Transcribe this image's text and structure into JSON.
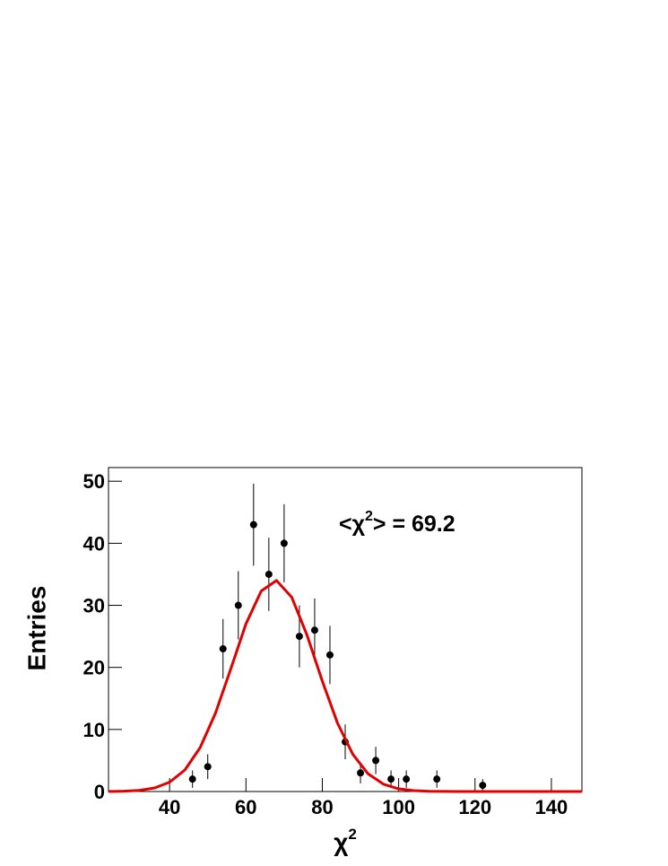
{
  "chart_data": {
    "type": "errorbar",
    "x_label": [
      "χ",
      "2"
    ],
    "y_label": "Entries",
    "annotation": [
      "<χ",
      "2",
      "> = 69.2"
    ],
    "x": [
      46,
      50,
      54,
      58,
      62,
      66,
      70,
      74,
      78,
      82,
      86,
      90,
      94,
      98,
      102,
      110,
      122
    ],
    "values": [
      2,
      4,
      23,
      30,
      43,
      35,
      40,
      25,
      26,
      22,
      8,
      3,
      5,
      2,
      2,
      2,
      1
    ],
    "errors": [
      1.4,
      2,
      4.8,
      5.5,
      6.6,
      5.9,
      6.3,
      5,
      5.1,
      4.7,
      2.8,
      1.7,
      2.2,
      1.4,
      1.4,
      1.4,
      1
    ],
    "color": "#000000",
    "fit": {
      "color": "#e00000",
      "x": [
        24,
        28,
        32,
        36,
        40,
        44,
        48,
        52,
        56,
        60,
        64,
        68,
        72,
        76,
        80,
        84,
        88,
        92,
        96,
        100,
        104,
        108,
        112,
        116,
        120,
        124,
        128,
        132,
        136,
        140,
        144,
        148
      ],
      "values": [
        0.01,
        0.05,
        0.19,
        0.56,
        1.5,
        3.47,
        7.07,
        12.6,
        19.7,
        27.0,
        32.3,
        34.0,
        31.3,
        25.2,
        17.8,
        11.0,
        5.99,
        2.85,
        1.19,
        0.43,
        0.14,
        0.04,
        0.01,
        0,
        0,
        0,
        0,
        0,
        0,
        0,
        0,
        0
      ]
    },
    "xlim": [
      24,
      148
    ],
    "xticks": [
      40,
      60,
      80,
      100,
      120,
      140
    ],
    "ylim": [
      0,
      52.2
    ],
    "yticks": [
      0,
      10,
      20,
      30,
      40,
      50
    ]
  }
}
